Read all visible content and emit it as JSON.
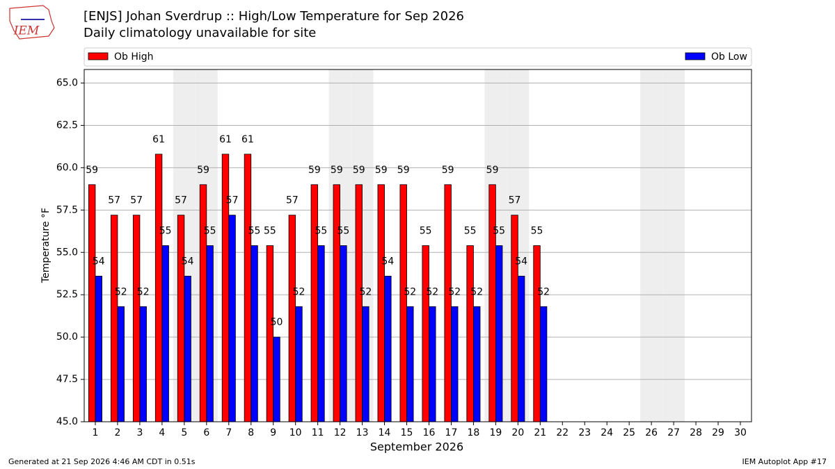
{
  "logo_text": "IEM",
  "chart_data": {
    "type": "bar",
    "title": "[ENJS] Johan Sverdrup :: High/Low Temperature for Sep 2026",
    "subtitle": "Daily climatology unavailable for site",
    "xlabel": "September 2026",
    "ylabel": "Temperature °F",
    "categories": [
      "1",
      "2",
      "3",
      "4",
      "5",
      "6",
      "7",
      "8",
      "9",
      "10",
      "11",
      "12",
      "13",
      "14",
      "15",
      "16",
      "17",
      "18",
      "19",
      "20",
      "21",
      "22",
      "23",
      "24",
      "25",
      "26",
      "27",
      "28",
      "29",
      "30"
    ],
    "shaded_categories": [
      "5",
      "6",
      "12",
      "13",
      "19",
      "20",
      "26",
      "27"
    ],
    "shade_color": "#eeeeee",
    "series": [
      {
        "name": "Ob High",
        "color": "#ff0000",
        "values": [
          59,
          57.2,
          57.2,
          60.8,
          57.2,
          59,
          60.8,
          60.8,
          55.4,
          57.2,
          59,
          59,
          59,
          59,
          59,
          55.4,
          59,
          55.4,
          59,
          57.2,
          55.4,
          null,
          null,
          null,
          null,
          null,
          null,
          null,
          null,
          null
        ],
        "value_labels": [
          "59",
          "57",
          "57",
          "61",
          "57",
          "59",
          "61",
          "61",
          "55",
          "57",
          "59",
          "59",
          "59",
          "59",
          "59",
          "55",
          "59",
          "55",
          "59",
          "57",
          "55",
          null,
          null,
          null,
          null,
          null,
          null,
          null,
          null,
          null
        ]
      },
      {
        "name": "Ob Low",
        "color": "#0000ff",
        "values": [
          53.6,
          51.8,
          51.8,
          55.4,
          53.6,
          55.4,
          57.2,
          55.4,
          50,
          51.8,
          55.4,
          55.4,
          51.8,
          53.6,
          51.8,
          51.8,
          51.8,
          51.8,
          55.4,
          53.6,
          51.8,
          null,
          null,
          null,
          null,
          null,
          null,
          null,
          null,
          null
        ],
        "value_labels": [
          "54",
          "52",
          "52",
          "55",
          "54",
          "55",
          "57",
          "55",
          "50",
          "52",
          "55",
          "55",
          "52",
          "54",
          "52",
          "52",
          "52",
          "52",
          "55",
          "54",
          "52",
          null,
          null,
          null,
          null,
          null,
          null,
          null,
          null,
          null
        ]
      }
    ],
    "ylim": [
      45,
      65.8
    ],
    "yticks": [
      {
        "value": 45,
        "label": "45.0"
      },
      {
        "value": 47.5,
        "label": "47.5"
      },
      {
        "value": 50,
        "label": "50.0"
      },
      {
        "value": 52.5,
        "label": "52.5"
      },
      {
        "value": 55,
        "label": "55.0"
      },
      {
        "value": 57.5,
        "label": "57.5"
      },
      {
        "value": 60,
        "label": "60.0"
      },
      {
        "value": 62.5,
        "label": "62.5"
      },
      {
        "value": 65,
        "label": "65.0"
      }
    ],
    "grid": true,
    "legend": "top",
    "footer_left": "Generated at 21 Sep 2026 4:46 AM CDT in 0.51s",
    "footer_right": "IEM Autoplot App #17"
  }
}
